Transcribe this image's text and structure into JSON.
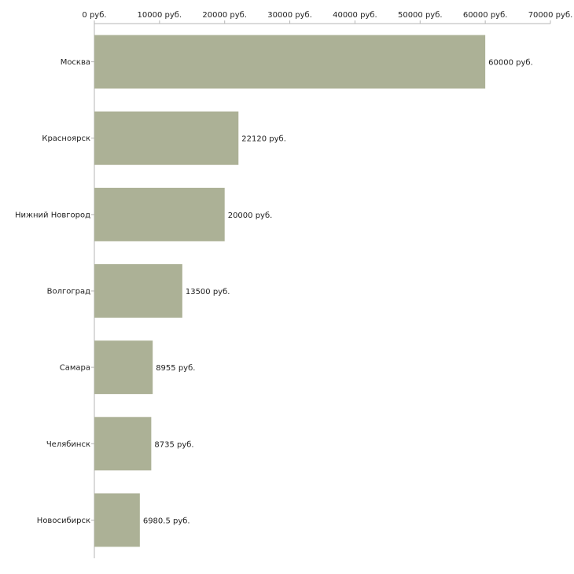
{
  "chart_data": {
    "type": "bar",
    "orientation": "horizontal",
    "title": "",
    "xlabel": "",
    "ylabel": "",
    "categories": [
      "Москва",
      "Красноярск",
      "Нижний Новгород",
      "Волгоград",
      "Самара",
      "Челябинск",
      "Новосибирск"
    ],
    "values": [
      60000,
      22120,
      20000,
      13500,
      8955,
      8735,
      6980.5
    ],
    "value_labels": [
      "60000 руб.",
      "22120 руб.",
      "20000 руб.",
      "13500 руб.",
      "8955 руб.",
      "8735 руб.",
      "6980.5 руб."
    ],
    "xlim": [
      0,
      70000
    ],
    "ticks": [
      0,
      10000,
      20000,
      30000,
      40000,
      50000,
      60000,
      70000
    ],
    "tick_labels": [
      "0 руб.",
      "10000 руб.",
      "20000 руб.",
      "30000 руб.",
      "40000 руб.",
      "50000 руб.",
      "60000 руб.",
      "70000 руб."
    ],
    "axis_position": "top",
    "grid": false,
    "legend": "none",
    "bar_color": "#acb196"
  }
}
